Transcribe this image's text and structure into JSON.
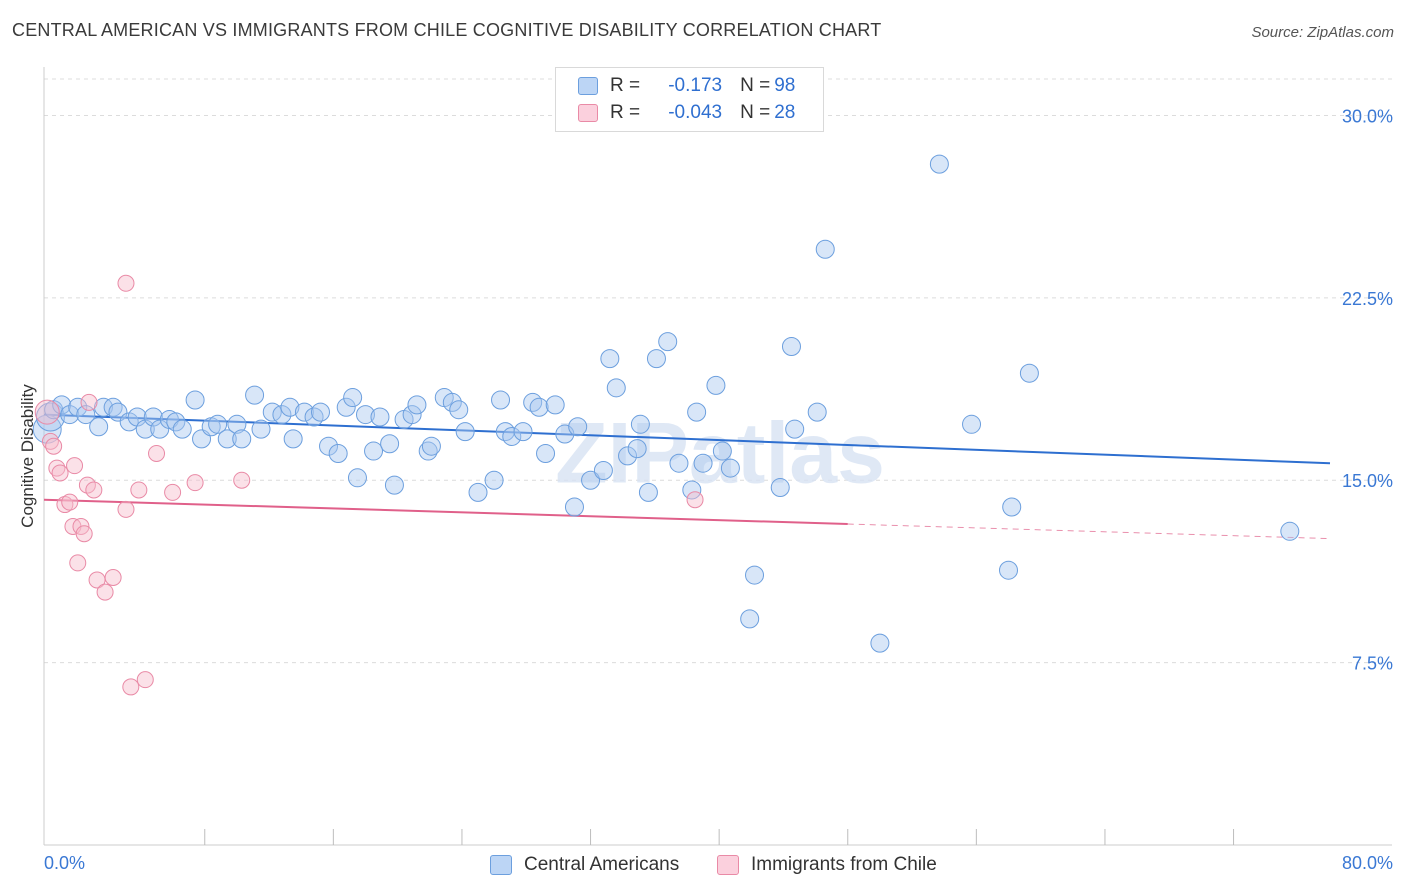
{
  "header": {
    "title": "CENTRAL AMERICAN VS IMMIGRANTS FROM CHILE COGNITIVE DISABILITY CORRELATION CHART",
    "source": "Source: ZipAtlas.com"
  },
  "watermark": "ZIPatlas",
  "legend": {
    "rows": [
      {
        "r_label": "R =",
        "r_value": "-0.173",
        "n_label": "N =",
        "n_value": "98"
      },
      {
        "r_label": "R =",
        "r_value": "-0.043",
        "n_label": "N =",
        "n_value": "28"
      }
    ]
  },
  "colors": {
    "blue_fill": "#a9c8f0",
    "blue_stroke": "#6c9fde",
    "blue_line": "#2e6fd0",
    "pink_fill": "#f7bccd",
    "pink_stroke": "#e98aa6",
    "pink_line": "#e0608a",
    "axis_text": "#3a78d4",
    "grid": "#dcdcdc"
  },
  "chart_data": {
    "type": "scatter",
    "title": "CENTRAL AMERICAN VS IMMIGRANTS FROM CHILE COGNITIVE DISABILITY CORRELATION CHART",
    "xlabel": "",
    "ylabel": "Cognitive Disability",
    "xlim": [
      0,
      80
    ],
    "ylim": [
      0,
      31.5
    ],
    "x_tick_labels": [
      "0.0%",
      "80.0%"
    ],
    "y_ticks": [
      7.5,
      15.0,
      22.5,
      30.0
    ],
    "y_tick_labels": [
      "7.5%",
      "15.0%",
      "22.5%",
      "30.0%"
    ],
    "grid": "horizontal dashed",
    "legend_position": "top-center",
    "series": [
      {
        "name": "Central Americans",
        "color": "#a9c8f0",
        "points": [
          [
            0.2,
            17.1
          ],
          [
            0.4,
            17.6
          ],
          [
            0.6,
            17.9
          ],
          [
            1.1,
            18.1
          ],
          [
            1.6,
            17.7
          ],
          [
            2.1,
            18.0
          ],
          [
            2.6,
            17.7
          ],
          [
            3.4,
            17.2
          ],
          [
            3.7,
            18.0
          ],
          [
            4.3,
            18.0
          ],
          [
            4.6,
            17.8
          ],
          [
            5.3,
            17.4
          ],
          [
            5.8,
            17.6
          ],
          [
            6.3,
            17.1
          ],
          [
            6.8,
            17.6
          ],
          [
            7.2,
            17.1
          ],
          [
            7.8,
            17.5
          ],
          [
            8.2,
            17.4
          ],
          [
            8.6,
            17.1
          ],
          [
            9.4,
            18.3
          ],
          [
            9.8,
            16.7
          ],
          [
            10.4,
            17.2
          ],
          [
            10.8,
            17.3
          ],
          [
            11.4,
            16.7
          ],
          [
            12.0,
            17.3
          ],
          [
            12.3,
            16.7
          ],
          [
            13.5,
            17.1
          ],
          [
            13.1,
            18.5
          ],
          [
            14.2,
            17.8
          ],
          [
            14.8,
            17.7
          ],
          [
            15.3,
            18.0
          ],
          [
            15.5,
            16.7
          ],
          [
            16.2,
            17.8
          ],
          [
            16.8,
            17.6
          ],
          [
            17.2,
            17.8
          ],
          [
            17.7,
            16.4
          ],
          [
            18.3,
            16.1
          ],
          [
            18.8,
            18.0
          ],
          [
            19.2,
            18.4
          ],
          [
            19.5,
            15.1
          ],
          [
            20.0,
            17.7
          ],
          [
            20.5,
            16.2
          ],
          [
            20.9,
            17.6
          ],
          [
            21.5,
            16.5
          ],
          [
            21.8,
            14.8
          ],
          [
            22.4,
            17.5
          ],
          [
            22.9,
            17.7
          ],
          [
            23.2,
            18.1
          ],
          [
            23.9,
            16.2
          ],
          [
            24.1,
            16.4
          ],
          [
            24.9,
            18.4
          ],
          [
            25.4,
            18.2
          ],
          [
            25.8,
            17.9
          ],
          [
            26.2,
            17.0
          ],
          [
            27.0,
            14.5
          ],
          [
            28.0,
            15.0
          ],
          [
            28.4,
            18.3
          ],
          [
            28.7,
            17.0
          ],
          [
            29.1,
            16.8
          ],
          [
            29.8,
            17.0
          ],
          [
            30.4,
            18.2
          ],
          [
            30.8,
            18.0
          ],
          [
            31.2,
            16.1
          ],
          [
            31.8,
            18.1
          ],
          [
            32.4,
            16.9
          ],
          [
            33.0,
            13.9
          ],
          [
            33.2,
            17.2
          ],
          [
            34.0,
            15.0
          ],
          [
            34.8,
            15.4
          ],
          [
            35.2,
            20.0
          ],
          [
            35.6,
            18.8
          ],
          [
            36.3,
            16.0
          ],
          [
            36.9,
            16.3
          ],
          [
            37.1,
            17.3
          ],
          [
            37.6,
            14.5
          ],
          [
            38.1,
            20.0
          ],
          [
            38.8,
            20.7
          ],
          [
            39.5,
            15.7
          ],
          [
            40.3,
            14.6
          ],
          [
            40.6,
            17.8
          ],
          [
            41.0,
            15.7
          ],
          [
            41.8,
            18.9
          ],
          [
            42.2,
            16.2
          ],
          [
            42.7,
            15.5
          ],
          [
            43.9,
            9.3
          ],
          [
            44.2,
            11.1
          ],
          [
            45.8,
            14.7
          ],
          [
            46.5,
            20.5
          ],
          [
            46.7,
            17.1
          ],
          [
            48.1,
            17.8
          ],
          [
            48.6,
            24.5
          ],
          [
            52.0,
            8.3
          ],
          [
            55.7,
            28.0
          ],
          [
            57.7,
            17.3
          ],
          [
            60.0,
            11.3
          ],
          [
            60.2,
            13.9
          ],
          [
            61.3,
            19.4
          ],
          [
            77.5,
            12.9
          ]
        ],
        "trend": {
          "x": [
            0,
            80
          ],
          "y": [
            17.7,
            15.7
          ]
        }
      },
      {
        "name": "Immigrants from Chile",
        "color": "#f7bccd",
        "points": [
          [
            0.2,
            17.8
          ],
          [
            0.4,
            16.6
          ],
          [
            0.6,
            16.4
          ],
          [
            0.8,
            15.5
          ],
          [
            1.0,
            15.3
          ],
          [
            1.3,
            14.0
          ],
          [
            1.6,
            14.1
          ],
          [
            1.8,
            13.1
          ],
          [
            1.9,
            15.6
          ],
          [
            2.1,
            11.6
          ],
          [
            2.3,
            13.1
          ],
          [
            2.5,
            12.8
          ],
          [
            2.7,
            14.8
          ],
          [
            2.8,
            18.2
          ],
          [
            3.1,
            14.6
          ],
          [
            3.3,
            10.9
          ],
          [
            3.8,
            10.4
          ],
          [
            4.3,
            11.0
          ],
          [
            5.1,
            13.8
          ],
          [
            5.1,
            23.1
          ],
          [
            5.4,
            6.5
          ],
          [
            5.9,
            14.6
          ],
          [
            6.3,
            6.8
          ],
          [
            7.0,
            16.1
          ],
          [
            8.0,
            14.5
          ],
          [
            9.4,
            14.9
          ],
          [
            12.3,
            15.0
          ],
          [
            40.5,
            14.2
          ]
        ],
        "trend": {
          "x": [
            0,
            50
          ],
          "y": [
            14.2,
            13.2
          ]
        },
        "trend_dashed_to": {
          "x": 80,
          "y": 12.6
        }
      }
    ]
  }
}
